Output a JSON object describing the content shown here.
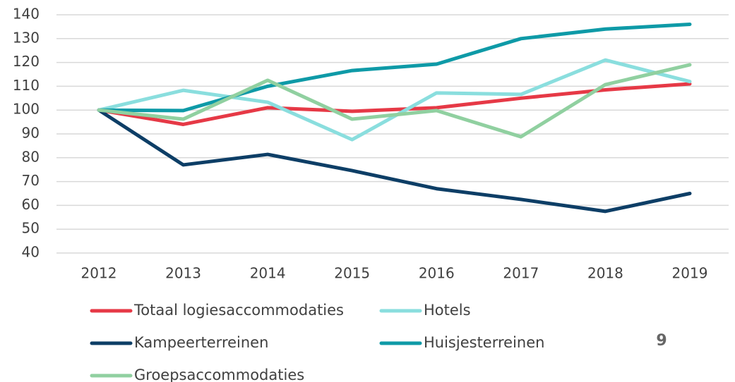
{
  "chart_data": {
    "type": "line",
    "categories": [
      "2012",
      "2013",
      "2014",
      "2015",
      "2016",
      "2017",
      "2018",
      "2019"
    ],
    "series": [
      {
        "name": "Totaal logiesaccommodaties",
        "color": "#e63946",
        "values": [
          100,
          94,
          101,
          99.5,
          101,
          105,
          108.5,
          111
        ]
      },
      {
        "name": "Hotels",
        "color": "#8adede",
        "values": [
          100,
          108.3,
          103.3,
          87.6,
          107.2,
          106.6,
          121,
          112
        ]
      },
      {
        "name": "Kampeerterreinen",
        "color": "#0d3e66",
        "values": [
          100,
          77,
          81.4,
          74.6,
          67,
          62.5,
          57.5,
          65
        ]
      },
      {
        "name": "Huisjesterreinen",
        "color": "#0e9aa7",
        "values": [
          100,
          99.8,
          110,
          116.6,
          119.3,
          130,
          134,
          136
        ]
      },
      {
        "name": "Groepsaccommodaties",
        "color": "#90d0a0",
        "values": [
          100,
          96.2,
          112.5,
          96.2,
          99.8,
          88.8,
          110.7,
          119
        ]
      }
    ],
    "ylim": [
      40,
      140
    ],
    "yticks": [
      40,
      50,
      60,
      70,
      80,
      90,
      100,
      110,
      120,
      130,
      140
    ],
    "grid": true,
    "legend": "bottom",
    "annotation": "9"
  }
}
